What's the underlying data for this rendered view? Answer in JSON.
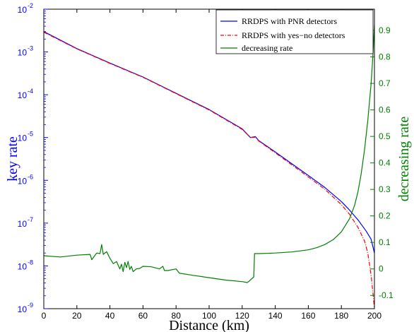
{
  "chart_data": {
    "type": "line",
    "title": "",
    "xlabel": "Distance (km)",
    "ylabel_left": "key rate",
    "ylabel_right": "decreasing rate",
    "xlim": [
      0,
      200
    ],
    "ylim_left": [
      1e-09,
      0.01
    ],
    "ylim_right": [
      -0.15,
      0.98
    ],
    "left_scale": "log",
    "right_scale": "linear",
    "grid": false,
    "legend_position": "top-right",
    "x_ticks": [
      0,
      20,
      40,
      60,
      80,
      100,
      120,
      140,
      160,
      180,
      200
    ],
    "y_left_ticks": [
      {
        "base": "10",
        "exp": "-9"
      },
      {
        "base": "10",
        "exp": "-8"
      },
      {
        "base": "10",
        "exp": "-7"
      },
      {
        "base": "10",
        "exp": "-6"
      },
      {
        "base": "10",
        "exp": "-5"
      },
      {
        "base": "10",
        "exp": "-4"
      },
      {
        "base": "10",
        "exp": "-3"
      },
      {
        "base": "10",
        "exp": "-2"
      }
    ],
    "y_right_ticks": [
      -0.1,
      0,
      0.1,
      0.2,
      0.3,
      0.4,
      0.5,
      0.6,
      0.7,
      0.8,
      0.9
    ],
    "colors": {
      "left_axis": "#0000ff",
      "right_axis": "#008000"
    },
    "series": [
      {
        "name": "RRDPS with PNR detectors",
        "axis": "left",
        "color": "#0000ff",
        "style": "solid",
        "x": [
          0,
          20,
          40,
          60,
          80,
          100,
          120,
          125,
          128,
          130,
          140,
          160,
          170,
          180,
          185,
          190,
          195,
          198,
          200
        ],
        "y": [
          0.003,
          0.0012,
          0.00055,
          0.00026,
          0.000108,
          4.5e-05,
          1.6e-05,
          1e-05,
          1.05e-05,
          8.5e-06,
          4.6e-06,
          1.3e-06,
          6.8e-07,
          3.2e-07,
          2e-07,
          1.2e-07,
          6.5e-08,
          4.2e-08,
          2e-08
        ]
      },
      {
        "name": "RRDPS with yes−no detectors",
        "axis": "left",
        "color": "#ff0000",
        "style": "dash-dot",
        "x": [
          0,
          20,
          40,
          60,
          80,
          100,
          120,
          125,
          128,
          130,
          140,
          160,
          170,
          180,
          185,
          190,
          194,
          196,
          198,
          199,
          200
        ],
        "y": [
          0.0029,
          0.00118,
          0.00054,
          0.000255,
          0.000106,
          4.4e-05,
          1.55e-05,
          1e-05,
          1.02e-05,
          8.3e-06,
          4.4e-06,
          1.2e-06,
          6.2e-07,
          2.7e-07,
          1.6e-07,
          8e-08,
          3.8e-08,
          2e-08,
          6e-09,
          2.5e-09,
          1e-09
        ]
      },
      {
        "name": "decreasing rate",
        "axis": "right",
        "color": "#008000",
        "style": "solid",
        "x": [
          0,
          10,
          20,
          28,
          29,
          32,
          34,
          35,
          36,
          38,
          40,
          42,
          44,
          46,
          47,
          48,
          49,
          50,
          51,
          52,
          53,
          54,
          56,
          58,
          60,
          65,
          70,
          72,
          73,
          75,
          80,
          82,
          90,
          100,
          110,
          120,
          122,
          123,
          124,
          127,
          127.5,
          130,
          140,
          150,
          160,
          165,
          170,
          175,
          180,
          185,
          188,
          190,
          192,
          194,
          196,
          198,
          199,
          200
        ],
        "y": [
          0.05,
          0.045,
          0.052,
          0.055,
          0.035,
          0.06,
          0.058,
          0.092,
          0.055,
          0.065,
          0.04,
          0.02,
          0.028,
          0.0,
          0.018,
          -0.01,
          0.025,
          0.005,
          0.028,
          -0.002,
          0.01,
          -0.01,
          0.0,
          0.002,
          0.01,
          0.008,
          0.0,
          0.01,
          -0.006,
          -0.006,
          0.0,
          -0.016,
          -0.024,
          -0.033,
          -0.042,
          -0.048,
          -0.05,
          -0.052,
          -0.047,
          -0.03,
          0.058,
          0.058,
          0.06,
          0.064,
          0.072,
          0.08,
          0.092,
          0.11,
          0.14,
          0.19,
          0.24,
          0.29,
          0.36,
          0.45,
          0.56,
          0.7,
          0.8,
          0.92
        ]
      }
    ]
  }
}
